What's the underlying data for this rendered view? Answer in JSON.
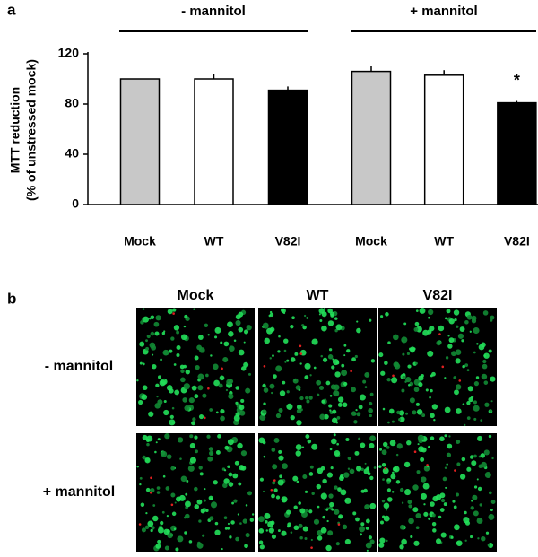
{
  "chart_data": {
    "type": "bar",
    "panel_label": "a",
    "ylabel": [
      "MTT reduction",
      "(% of unstressed mock)"
    ],
    "ylim": [
      0,
      120
    ],
    "yticks": [
      0,
      40,
      80,
      120
    ],
    "groups": [
      {
        "name": "- mannitol",
        "categories": [
          "Mock",
          "WT",
          "V82I"
        ],
        "values": [
          100,
          100,
          91
        ],
        "errors": [
          0,
          4,
          3
        ],
        "colors": [
          "#c8c8c8",
          "#ffffff",
          "#000000"
        ],
        "annotations": [
          null,
          null,
          null
        ]
      },
      {
        "name": "+ mannitol",
        "categories": [
          "Mock",
          "WT",
          "V82I"
        ],
        "values": [
          106,
          103,
          81
        ],
        "errors": [
          4,
          4,
          1.5
        ],
        "colors": [
          "#c8c8c8",
          "#ffffff",
          "#000000"
        ],
        "annotations": [
          null,
          null,
          "*"
        ]
      }
    ]
  },
  "micrographs": {
    "panel_label": "b",
    "columns": [
      "Mock",
      "WT",
      "V82I"
    ],
    "rows": [
      "- mannitol",
      "+ mannitol"
    ]
  }
}
